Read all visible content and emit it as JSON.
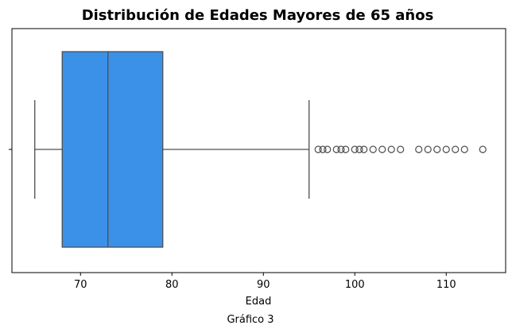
{
  "chart_data": {
    "type": "box",
    "title": "Distribución de Edades Mayores de 65 años",
    "xlabel": "Edad",
    "caption": "Gráfico 3",
    "xlim": [
      62.5,
      116.5
    ],
    "xticks": [
      70,
      80,
      90,
      100,
      110
    ],
    "xtick_labels": [
      "70",
      "80",
      "90",
      "100",
      "110"
    ],
    "box": {
      "whisker_low": 65,
      "q1": 68,
      "median": 73,
      "q3": 79,
      "whisker_high": 95
    },
    "outliers": [
      96,
      96.5,
      97,
      98,
      98.5,
      99,
      100,
      100.5,
      101,
      102,
      103,
      104,
      105,
      107,
      108,
      109,
      110,
      111,
      112,
      114
    ],
    "colors": {
      "box_fill": "#3a91e7",
      "line": "#4d4d4d",
      "axis": "#000000"
    },
    "grid": false
  }
}
